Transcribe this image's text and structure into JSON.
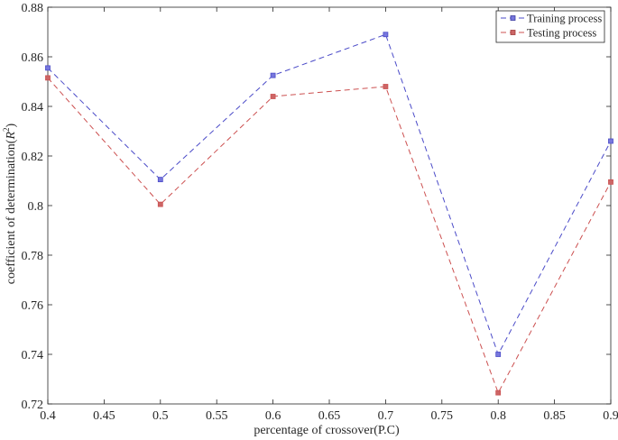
{
  "chart_data": {
    "type": "line",
    "title": "",
    "xlabel": "percentage of crossover(P.C)",
    "ylabel_main": "coefficient of determination(",
    "ylabel_symbol": "R",
    "ylabel_sup": "2",
    "ylabel_close": ")",
    "xlim": [
      0.4,
      0.9
    ],
    "ylim": [
      0.72,
      0.88
    ],
    "xticks": [
      0.4,
      0.45,
      0.5,
      0.55,
      0.6,
      0.65,
      0.7,
      0.75,
      0.8,
      0.85,
      0.9
    ],
    "xtick_labels": [
      "0.4",
      "0.45",
      "0.5",
      "0.55",
      "0.6",
      "0.65",
      "0.7",
      "0.75",
      "0.8",
      "0.85",
      "0.9"
    ],
    "yticks": [
      0.72,
      0.74,
      0.76,
      0.78,
      0.8,
      0.82,
      0.84,
      0.86,
      0.88
    ],
    "ytick_labels": [
      "0.72",
      "0.74",
      "0.76",
      "0.78",
      "0.8",
      "0.82",
      "0.84",
      "0.86",
      "0.88"
    ],
    "x": [
      0.4,
      0.5,
      0.6,
      0.7,
      0.8,
      0.9
    ],
    "grid": false,
    "legend_position": "top-right",
    "series": [
      {
        "name": "Training process",
        "values": [
          0.8555,
          0.8105,
          0.8525,
          0.869,
          0.74,
          0.826
        ],
        "color": "#4b4bc8",
        "marker_fill": "#7777dd",
        "line_style": "dashed",
        "marker": "square"
      },
      {
        "name": "Testing process",
        "values": [
          0.8515,
          0.8005,
          0.844,
          0.848,
          0.7245,
          0.8095
        ],
        "color": "#cc5050",
        "marker_fill": "#cc6666",
        "line_style": "dashed",
        "marker": "square"
      }
    ]
  }
}
